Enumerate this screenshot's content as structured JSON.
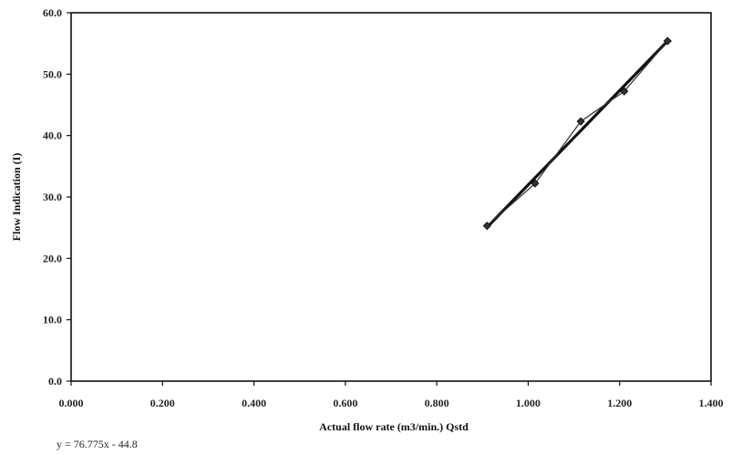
{
  "chart_data": {
    "type": "line",
    "title": "",
    "xlabel": "Actual flow rate (m3/min.) Qstd",
    "ylabel": "Flow Indication (I)",
    "xlim": [
      0.0,
      1.4
    ],
    "ylim": [
      0.0,
      60.0
    ],
    "x_ticks": [
      "0.000",
      "0.200",
      "0.400",
      "0.600",
      "0.800",
      "1.000",
      "1.200",
      "1.400"
    ],
    "y_ticks": [
      "0.0",
      "10.0",
      "20.0",
      "30.0",
      "40.0",
      "50.0",
      "60.0"
    ],
    "grid": false,
    "legend": "none",
    "series": [
      {
        "kind": "data",
        "marker": "diamond",
        "color": "#333333",
        "x": [
          0.91,
          1.015,
          1.115,
          1.21,
          1.305
        ],
        "y": [
          25.3,
          32.2,
          42.3,
          47.2,
          55.4
        ]
      },
      {
        "kind": "trendline",
        "color": "#111111",
        "equation": "y = 76.775x - 44.8",
        "slope": 76.775,
        "intercept": -44.8,
        "x_range": [
          0.91,
          1.305
        ]
      }
    ]
  }
}
